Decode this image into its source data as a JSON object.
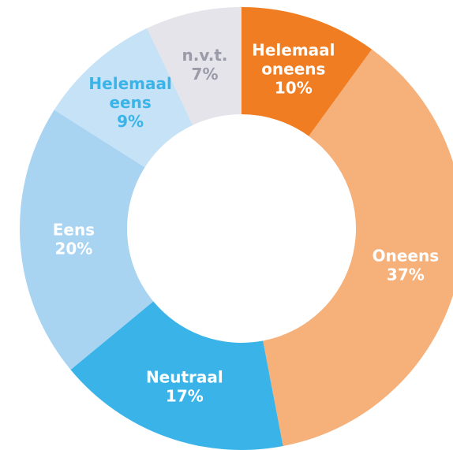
{
  "chart_data": {
    "type": "donut",
    "categories": [
      "Helemaal oneens",
      "Oneens",
      "Neutraal",
      "Eens",
      "Helemaal eens",
      "n.v.t."
    ],
    "values": [
      10,
      37,
      17,
      20,
      9,
      7
    ],
    "value_labels": [
      "10%",
      "37%",
      "17%",
      "20%",
      "9%",
      "7%"
    ],
    "colors": [
      "#f07d22",
      "#f6b07a",
      "#3ab4e8",
      "#a8d4f2",
      "#c6e2f7",
      "#e4e4ea"
    ]
  }
}
